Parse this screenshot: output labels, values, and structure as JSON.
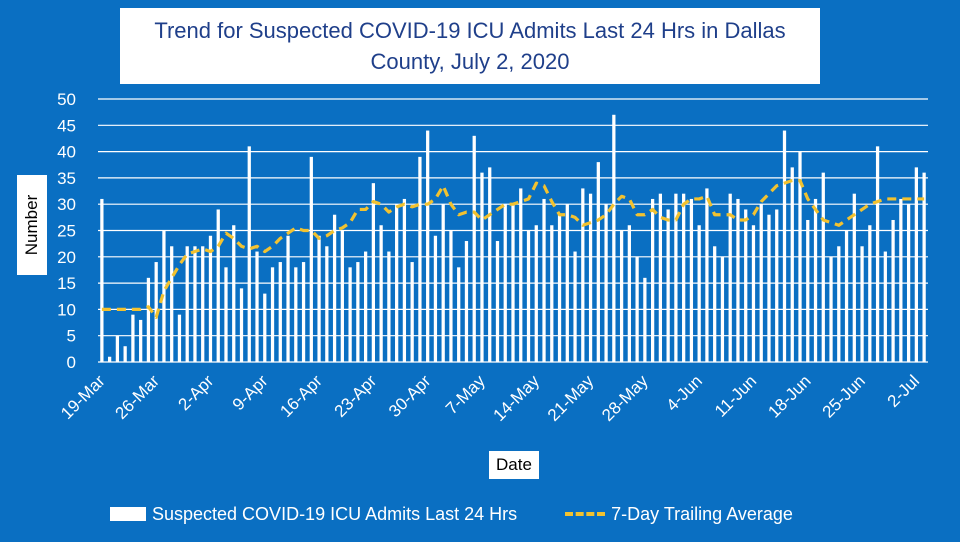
{
  "chart_data": {
    "type": "bar",
    "title": "Trend for Suspected COVID-19 ICU Admits Last 24 Hrs in Dallas County, July 2, 2020",
    "xlabel": "Date",
    "ylabel": "Number",
    "ylim": [
      0,
      50
    ],
    "yticks": [
      0,
      5,
      10,
      15,
      20,
      25,
      30,
      35,
      40,
      45,
      50
    ],
    "grid": "horizontal",
    "legend_position": "bottom",
    "x_tick_labels": [
      "19-Mar",
      "26-Mar",
      "2-Apr",
      "9-Apr",
      "16-Apr",
      "23-Apr",
      "30-Apr",
      "7-May",
      "14-May",
      "21-May",
      "28-May",
      "4-Jun",
      "11-Jun",
      "18-Jun",
      "25-Jun",
      "2-Jul"
    ],
    "x_tick_index": [
      0,
      7,
      14,
      21,
      28,
      35,
      42,
      49,
      56,
      63,
      70,
      77,
      84,
      91,
      98,
      105
    ],
    "series": [
      {
        "name": "Suspected COVID-19 ICU Admits Last 24 Hrs",
        "kind": "bar",
        "color": "#ffffff",
        "values": [
          31,
          1,
          5,
          3,
          9,
          8,
          16,
          19,
          25,
          22,
          9,
          22,
          22,
          22,
          24,
          29,
          18,
          26,
          14,
          41,
          21,
          13,
          18,
          19,
          24,
          18,
          19,
          39,
          24,
          22,
          28,
          25,
          18,
          19,
          21,
          34,
          26,
          21,
          30,
          31,
          19,
          39,
          44,
          24,
          30,
          25,
          18,
          23,
          43,
          36,
          37,
          23,
          30,
          30,
          33,
          25,
          26,
          31,
          26,
          28,
          30,
          21,
          33,
          32,
          38,
          30,
          47,
          25,
          26,
          20,
          16,
          31,
          32,
          29,
          32,
          32,
          31,
          26,
          33,
          22,
          20,
          32,
          31,
          29,
          26,
          30,
          28,
          29,
          44,
          37,
          40,
          27,
          31,
          36,
          20,
          22,
          25,
          32,
          22,
          26,
          41,
          21,
          27,
          31,
          30,
          37,
          36
        ]
      },
      {
        "name": "7-Day Trailing Average",
        "kind": "line",
        "color": "#f2c230",
        "values": [
          10,
          10,
          10,
          10,
          10,
          10,
          10.5,
          8.5,
          13.5,
          16,
          18.5,
          20.5,
          21,
          21.5,
          21,
          22,
          24.5,
          23.5,
          22,
          21.5,
          22,
          21,
          22,
          23.5,
          24.5,
          25.5,
          25,
          25,
          23.5,
          24,
          25,
          25.5,
          26.5,
          29,
          29,
          30.5,
          30,
          28.5,
          29.5,
          30,
          29.5,
          30,
          30,
          31,
          33.5,
          30,
          28,
          28.5,
          28.5,
          27,
          28,
          29,
          30,
          30,
          30.5,
          31,
          34,
          33.5,
          30.5,
          28,
          28,
          27.5,
          26,
          26.5,
          27,
          28,
          30,
          31.5,
          31,
          28,
          28,
          29,
          27.5,
          27,
          27,
          30,
          31,
          31,
          31.5,
          28,
          28,
          28,
          27,
          27,
          28,
          30.5,
          32,
          33.5,
          34,
          34.5,
          34.5,
          31,
          29,
          27,
          26.5,
          26,
          27,
          28,
          29,
          30,
          30.5,
          31,
          31,
          31,
          31,
          31,
          31
        ]
      }
    ]
  }
}
